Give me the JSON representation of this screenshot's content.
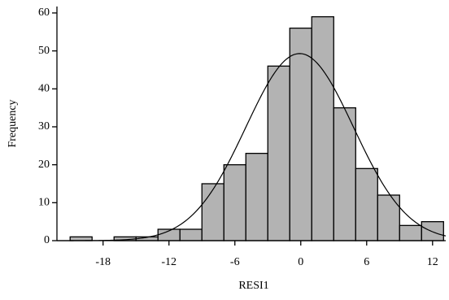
{
  "chart_data": {
    "type": "histogram",
    "xlabel": "RESI1",
    "ylabel": "Frequency",
    "bins": [
      -21,
      -19,
      -17,
      -15,
      -13,
      -11,
      -9,
      -7,
      -5,
      -3,
      -1,
      1,
      3,
      5,
      7,
      9,
      11,
      13
    ],
    "values": [
      1,
      0,
      1,
      1,
      3,
      3,
      15,
      20,
      23,
      46,
      56,
      59,
      35,
      19,
      12,
      4,
      5
    ],
    "color": "#b3b3b3",
    "normal_curve": {
      "mean": -0.1,
      "sd": 4.9,
      "peak": 49.3
    },
    "xlim": [
      -22.2,
      13.2
    ],
    "xticks": [
      -18,
      -12,
      -6,
      0,
      6,
      12
    ],
    "ylim": [
      0,
      61.7
    ],
    "yticks": [
      0,
      10,
      20,
      30,
      40,
      50,
      60
    ]
  }
}
